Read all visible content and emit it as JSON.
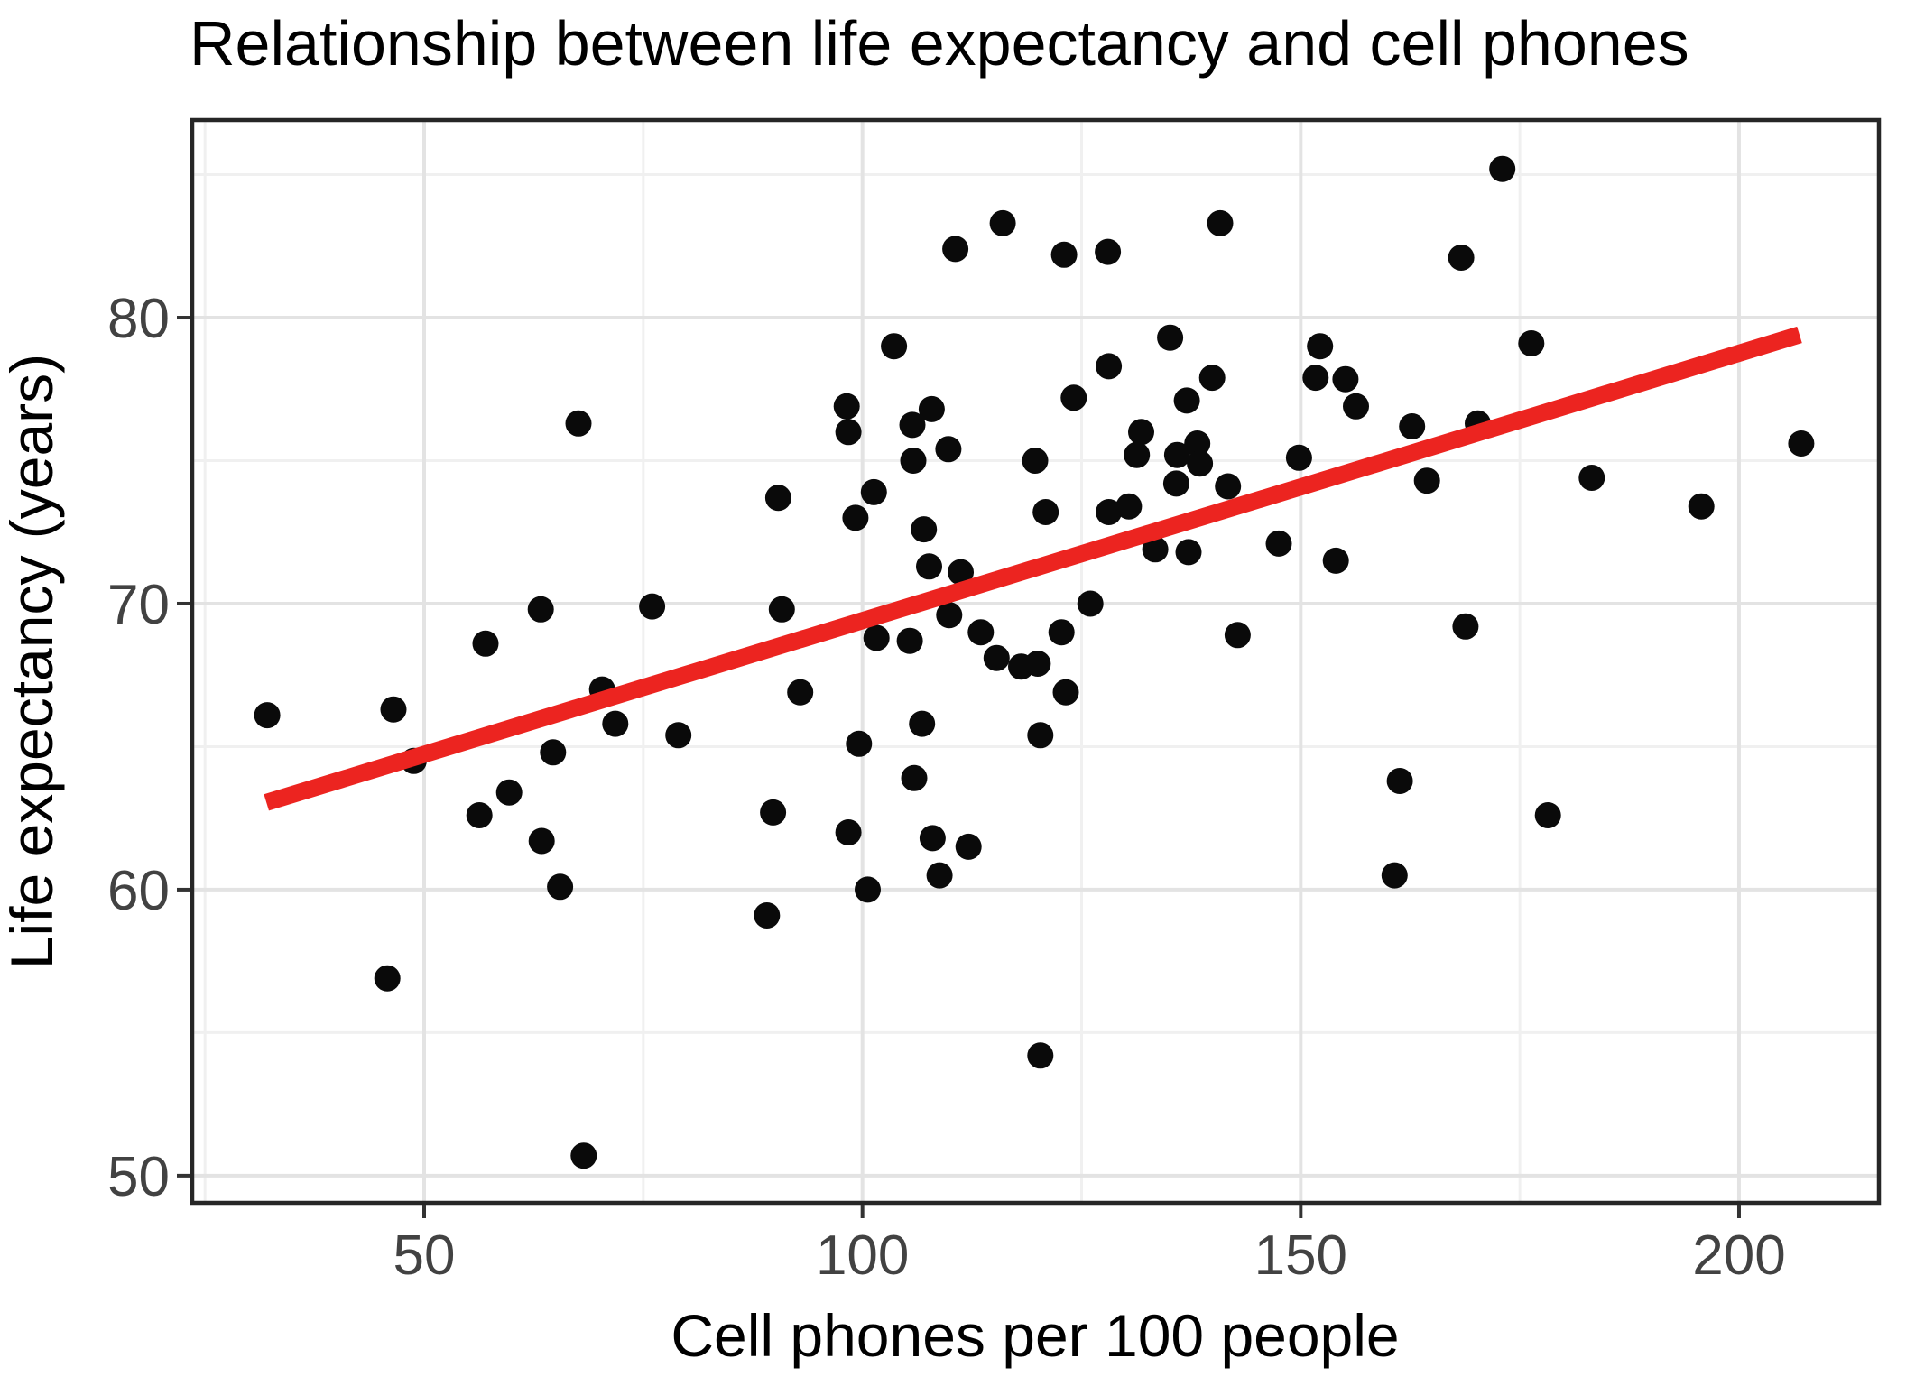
{
  "page": {
    "background": "#FFFFFF"
  },
  "chart_data": {
    "type": "scatter",
    "title": "Relationship between life expectancy and cell phones",
    "xlabel": "Cell phones per 100 people",
    "ylabel": "Life expectancy (years)",
    "xlim": [
      23.54,
      215.96
    ],
    "ylim": [
      49.05,
      86.91
    ],
    "x_ticks": [
      50,
      100,
      150,
      200
    ],
    "x_minor_ticks": [
      25,
      75,
      125,
      175
    ],
    "y_ticks": [
      50,
      60,
      70,
      80
    ],
    "y_minor_ticks": [
      55,
      65,
      75,
      85
    ],
    "grid": "major and minor gridlines on, white panel, dark panel border",
    "legend": "none",
    "colors": {
      "point": "#0A0A0A",
      "trend": "#EC2420",
      "grid_major": "#E3E3E3",
      "grid_minor": "#F0F0F0",
      "panel_border": "#262626",
      "tick": "#333333",
      "tick_label": "#424242",
      "title": "#000000"
    },
    "trend_line": {
      "type": "linear",
      "x1": 32.0,
      "y1": 63.05,
      "x2": 206.9,
      "y2": 79.4
    },
    "points": [
      [
        67.6,
        76.3
      ],
      [
        116.0,
        83.3
      ],
      [
        110.6,
        82.4
      ],
      [
        103.6,
        79.0
      ],
      [
        98.2,
        76.9
      ],
      [
        98.4,
        76.0
      ],
      [
        105.7,
        76.25
      ],
      [
        107.9,
        76.8
      ],
      [
        109.8,
        75.4
      ],
      [
        105.8,
        75.0
      ],
      [
        119.7,
        75.0
      ],
      [
        123.0,
        82.2
      ],
      [
        128.0,
        82.3
      ],
      [
        140.8,
        83.3
      ],
      [
        135.1,
        79.3
      ],
      [
        128.1,
        78.3
      ],
      [
        124.1,
        77.2
      ],
      [
        139.9,
        77.9
      ],
      [
        137.0,
        77.1
      ],
      [
        152.2,
        79.0
      ],
      [
        151.7,
        77.9
      ],
      [
        155.1,
        77.85
      ],
      [
        156.3,
        76.9
      ],
      [
        162.7,
        76.2
      ],
      [
        131.8,
        76.0
      ],
      [
        131.3,
        75.2
      ],
      [
        138.2,
        75.6
      ],
      [
        135.9,
        75.2
      ],
      [
        149.8,
        75.1
      ],
      [
        138.5,
        74.9
      ],
      [
        135.8,
        74.2
      ],
      [
        141.7,
        74.1
      ],
      [
        164.4,
        74.3
      ],
      [
        170.2,
        76.3
      ],
      [
        173.0,
        85.2
      ],
      [
        168.3,
        82.1
      ],
      [
        176.3,
        79.1
      ],
      [
        207.1,
        75.6
      ],
      [
        183.2,
        74.4
      ],
      [
        63.3,
        69.8
      ],
      [
        57.0,
        68.6
      ],
      [
        32.1,
        66.1
      ],
      [
        46.5,
        66.3
      ],
      [
        48.8,
        64.5
      ],
      [
        70.3,
        67.0
      ],
      [
        64.7,
        64.8
      ],
      [
        59.7,
        63.4
      ],
      [
        56.3,
        62.6
      ],
      [
        90.4,
        73.7
      ],
      [
        99.2,
        73.0
      ],
      [
        101.3,
        73.9
      ],
      [
        107.0,
        72.6
      ],
      [
        107.6,
        71.3
      ],
      [
        111.2,
        71.1
      ],
      [
        76.0,
        69.9
      ],
      [
        90.8,
        69.8
      ],
      [
        109.9,
        69.6
      ],
      [
        101.6,
        68.8
      ],
      [
        105.4,
        68.7
      ],
      [
        113.5,
        69.0
      ],
      [
        115.3,
        68.1
      ],
      [
        118.1,
        67.8
      ],
      [
        71.8,
        65.8
      ],
      [
        79.0,
        65.4
      ],
      [
        99.6,
        65.1
      ],
      [
        106.8,
        65.8
      ],
      [
        105.9,
        63.9
      ],
      [
        89.8,
        62.7
      ],
      [
        92.9,
        66.9
      ],
      [
        120.9,
        73.2
      ],
      [
        128.1,
        73.2
      ],
      [
        130.4,
        73.4
      ],
      [
        133.4,
        71.9
      ],
      [
        137.2,
        71.8
      ],
      [
        147.5,
        72.1
      ],
      [
        154.0,
        71.5
      ],
      [
        122.7,
        69.0
      ],
      [
        126.0,
        70.0
      ],
      [
        120.0,
        67.9
      ],
      [
        142.8,
        68.9
      ],
      [
        123.2,
        66.9
      ],
      [
        120.3,
        65.4
      ],
      [
        161.3,
        63.8
      ],
      [
        195.7,
        73.4
      ],
      [
        168.8,
        69.2
      ],
      [
        178.2,
        62.6
      ],
      [
        63.4,
        61.7
      ],
      [
        65.5,
        60.1
      ],
      [
        45.8,
        56.9
      ],
      [
        68.2,
        50.7
      ],
      [
        98.4,
        62.0
      ],
      [
        100.6,
        60.0
      ],
      [
        108.0,
        61.8
      ],
      [
        108.8,
        60.5
      ],
      [
        112.1,
        61.5
      ],
      [
        89.1,
        59.1
      ],
      [
        160.7,
        60.5
      ],
      [
        120.3,
        54.2
      ]
    ]
  }
}
